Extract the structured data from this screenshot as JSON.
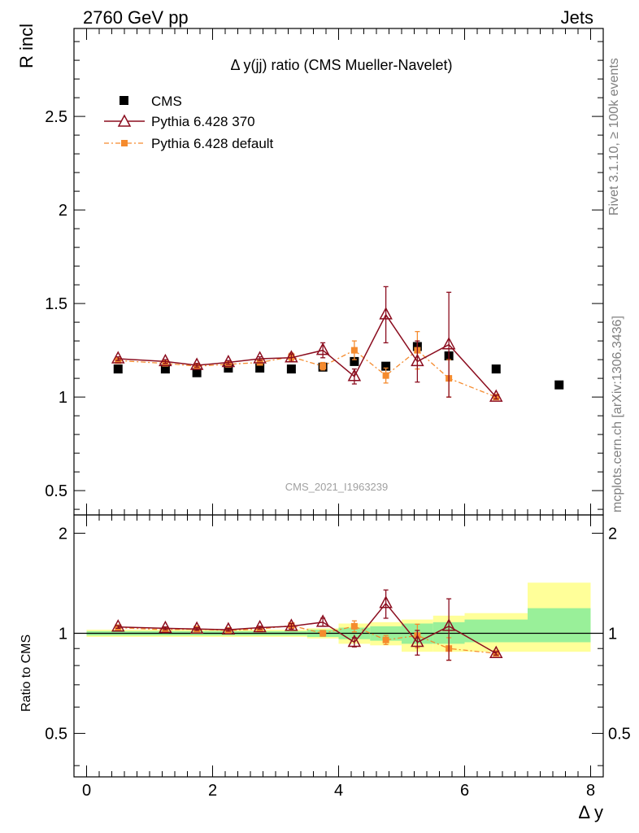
{
  "header": {
    "left": "2760 GeV pp",
    "right": "Jets"
  },
  "side_labels": {
    "rivet": "Rivet 3.1.10, ≥ 100k events",
    "mcplots": "mcplots.cern.ch [arXiv:1306.3436]"
  },
  "chart_data": [
    {
      "type": "scatter",
      "panel": "main",
      "title": "Δ y(jj) ratio (CMS Mueller-Navelet)",
      "ylabel": "R incl",
      "xlabel": "",
      "watermark": "CMS_2021_I1963239",
      "xlim": [
        -0.2,
        8.2
      ],
      "ylim": [
        0.37,
        2.97
      ],
      "yticks": [
        "0.5",
        "1",
        "1.5",
        "2",
        "2.5"
      ],
      "legend_position": "top-left",
      "series": [
        {
          "name": "CMS",
          "color": "#000000",
          "marker": "square",
          "x": [
            0.5,
            1.25,
            1.75,
            2.25,
            2.75,
            3.25,
            3.75,
            4.25,
            4.75,
            5.25,
            5.75,
            6.5,
            7.5
          ],
          "y": [
            1.15,
            1.15,
            1.13,
            1.155,
            1.155,
            1.15,
            1.16,
            1.19,
            1.165,
            1.27,
            1.22,
            1.15,
            1.065
          ]
        },
        {
          "name": "Pythia 6.428 370",
          "color": "#8b0d1f",
          "marker": "triangle",
          "x": [
            0.5,
            1.25,
            1.75,
            2.25,
            2.75,
            3.25,
            3.75,
            4.25,
            4.75,
            5.25,
            5.75,
            6.5
          ],
          "y": [
            1.205,
            1.19,
            1.17,
            1.185,
            1.205,
            1.21,
            1.25,
            1.11,
            1.44,
            1.19,
            1.28,
            1.0
          ],
          "err": [
            0.01,
            0.01,
            0.01,
            0.01,
            0.01,
            0.02,
            0.04,
            0.04,
            0.15,
            0.11,
            0.28,
            0.01
          ]
        },
        {
          "name": "Pythia 6.428 default",
          "color": "#f58b2e",
          "marker": "square",
          "x": [
            0.5,
            1.25,
            1.75,
            2.25,
            2.75,
            3.25,
            3.75,
            4.25,
            4.75,
            5.25,
            5.75,
            6.5
          ],
          "y": [
            1.195,
            1.18,
            1.165,
            1.175,
            1.185,
            1.215,
            1.165,
            1.25,
            1.115,
            1.25,
            1.1,
            1.0
          ],
          "err": [
            0.01,
            0.01,
            0.01,
            0.01,
            0.01,
            0.02,
            0.02,
            0.05,
            0.04,
            0.1,
            0.1,
            0.01
          ]
        }
      ]
    },
    {
      "type": "scatter",
      "panel": "ratio",
      "ylabel": "Ratio to CMS",
      "xlabel": "Δ y",
      "xlim": [
        -0.2,
        8.2
      ],
      "ylim": [
        0.37,
        2.27
      ],
      "xticks": [
        "0",
        "2",
        "4",
        "6",
        "8"
      ],
      "yticks": [
        "0.5",
        "1",
        "2"
      ],
      "bands": [
        {
          "x0": -0.0,
          "x1": 3.5,
          "green": [
            0.985,
            1.015
          ],
          "yellow": [
            0.975,
            1.025
          ]
        },
        {
          "x0": 3.5,
          "x1": 4.0,
          "green": [
            0.975,
            1.025
          ],
          "yellow": [
            0.965,
            1.035
          ]
        },
        {
          "x0": 4.0,
          "x1": 4.5,
          "green": [
            0.96,
            1.04
          ],
          "yellow": [
            0.93,
            1.07
          ]
        },
        {
          "x0": 4.5,
          "x1": 5.0,
          "green": [
            0.95,
            1.05
          ],
          "yellow": [
            0.92,
            1.08
          ]
        },
        {
          "x0": 5.0,
          "x1": 5.5,
          "green": [
            0.93,
            1.07
          ],
          "yellow": [
            0.88,
            1.1
          ]
        },
        {
          "x0": 5.5,
          "x1": 6.0,
          "green": [
            0.93,
            1.08
          ],
          "yellow": [
            0.88,
            1.13
          ]
        },
        {
          "x0": 6.0,
          "x1": 7.0,
          "green": [
            0.94,
            1.1
          ],
          "yellow": [
            0.88,
            1.15
          ]
        },
        {
          "x0": 7.0,
          "x1": 8.0,
          "green": [
            0.94,
            1.19
          ],
          "yellow": [
            0.88,
            1.42
          ]
        }
      ],
      "series": [
        {
          "name": "Pythia 6.428 370",
          "color": "#8b0d1f",
          "marker": "triangle",
          "x": [
            0.5,
            1.25,
            1.75,
            2.25,
            2.75,
            3.25,
            3.75,
            4.25,
            4.75,
            5.25,
            5.75,
            6.5
          ],
          "y": [
            1.045,
            1.035,
            1.03,
            1.025,
            1.04,
            1.05,
            1.08,
            0.94,
            1.23,
            0.94,
            1.05,
            0.87
          ],
          "err": [
            0.01,
            0.01,
            0.01,
            0.01,
            0.01,
            0.02,
            0.03,
            0.03,
            0.12,
            0.08,
            0.22,
            0.01
          ]
        },
        {
          "name": "Pythia 6.428 default",
          "color": "#f58b2e",
          "marker": "square",
          "x": [
            0.5,
            1.25,
            1.75,
            2.25,
            2.75,
            3.25,
            3.75,
            4.25,
            4.75,
            5.25,
            5.75,
            6.5
          ],
          "y": [
            1.04,
            1.025,
            1.03,
            1.02,
            1.03,
            1.055,
            1.0,
            1.05,
            0.955,
            0.985,
            0.9,
            0.87
          ],
          "err": [
            0.01,
            0.01,
            0.01,
            0.01,
            0.01,
            0.02,
            0.02,
            0.04,
            0.03,
            0.08,
            0.07,
            0.01
          ]
        }
      ]
    }
  ]
}
